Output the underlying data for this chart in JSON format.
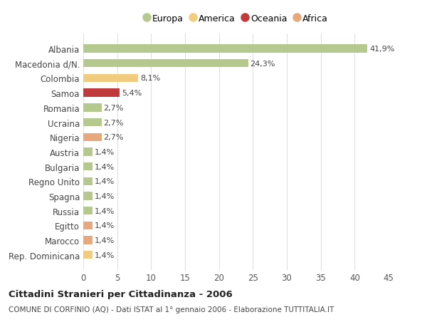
{
  "categories": [
    "Albania",
    "Macedonia d/N.",
    "Colombia",
    "Samoa",
    "Romania",
    "Ucraina",
    "Nigeria",
    "Austria",
    "Bulgaria",
    "Regno Unito",
    "Spagna",
    "Russia",
    "Egitto",
    "Marocco",
    "Rep. Dominicana"
  ],
  "values": [
    41.9,
    24.3,
    8.1,
    5.4,
    2.7,
    2.7,
    2.7,
    1.4,
    1.4,
    1.4,
    1.4,
    1.4,
    1.4,
    1.4,
    1.4
  ],
  "labels": [
    "41,9%",
    "24,3%",
    "8,1%",
    "5,4%",
    "2,7%",
    "2,7%",
    "2,7%",
    "1,4%",
    "1,4%",
    "1,4%",
    "1,4%",
    "1,4%",
    "1,4%",
    "1,4%",
    "1,4%"
  ],
  "colors": [
    "#b5c98e",
    "#b5c98e",
    "#f2cc7e",
    "#c0393b",
    "#b5c98e",
    "#b5c98e",
    "#e8a87c",
    "#b5c98e",
    "#b5c98e",
    "#b5c98e",
    "#b5c98e",
    "#b5c98e",
    "#e8a87c",
    "#e8a87c",
    "#f2cc7e"
  ],
  "legend_labels": [
    "Europa",
    "America",
    "Oceania",
    "Africa"
  ],
  "legend_colors": [
    "#b5c98e",
    "#f2cc7e",
    "#c0393b",
    "#e8a87c"
  ],
  "title": "Cittadini Stranieri per Cittadinanza - 2006",
  "subtitle": "COMUNE DI CORFINIO (AQ) - Dati ISTAT al 1° gennaio 2006 - Elaborazione TUTTITALIA.IT",
  "xlim": [
    0,
    45
  ],
  "xticks": [
    0,
    5,
    10,
    15,
    20,
    25,
    30,
    35,
    40,
    45
  ],
  "background_color": "#ffffff",
  "grid_color": "#e0e0e0"
}
